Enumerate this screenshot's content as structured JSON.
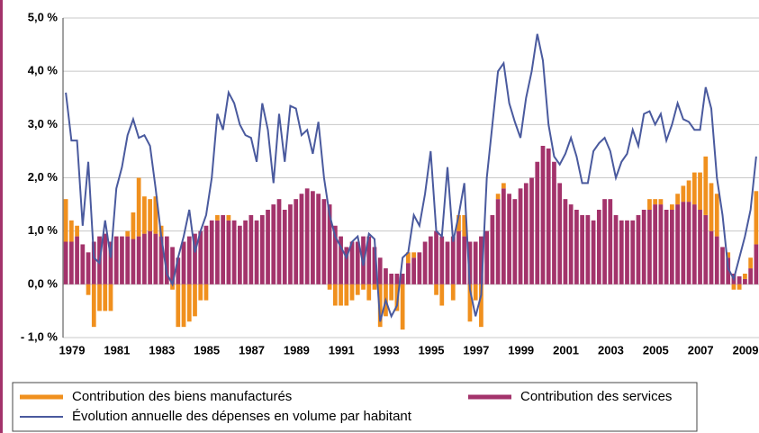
{
  "chart_data": {
    "type": "bar",
    "stacked": true,
    "categories": [
      "1979",
      null,
      null,
      null,
      null,
      null,
      null,
      null,
      "1981",
      null,
      null,
      null,
      null,
      null,
      null,
      null,
      "1983",
      null,
      null,
      null,
      null,
      null,
      null,
      null,
      "1985",
      null,
      null,
      null,
      null,
      null,
      null,
      null,
      "1987",
      null,
      null,
      null,
      null,
      null,
      null,
      null,
      "1989",
      null,
      null,
      null,
      null,
      null,
      null,
      null,
      "1991",
      null,
      null,
      null,
      null,
      null,
      null,
      null,
      "1993",
      null,
      null,
      null,
      null,
      null,
      null,
      null,
      "1995",
      null,
      null,
      null,
      null,
      null,
      null,
      null,
      "1997",
      null,
      null,
      null,
      null,
      null,
      null,
      null,
      "1999",
      null,
      null,
      null,
      null,
      null,
      null,
      null,
      "2001",
      null,
      null,
      null,
      null,
      null,
      null,
      null,
      "2003",
      null,
      null,
      null,
      null,
      null,
      null,
      null,
      "2005",
      null,
      null,
      null,
      null,
      null,
      null,
      null,
      "2007",
      null,
      null,
      null,
      null,
      null,
      null,
      null,
      "2009",
      null,
      null,
      null
    ],
    "series": [
      {
        "name": "Contribution des services",
        "color": "#a3336b",
        "values": [
          0.8,
          0.8,
          0.9,
          0.75,
          0.6,
          0.8,
          0.9,
          0.95,
          0.8,
          0.9,
          0.9,
          0.9,
          0.85,
          0.9,
          0.95,
          1.0,
          0.95,
          0.9,
          0.9,
          0.7,
          0.5,
          0.8,
          0.9,
          0.95,
          1.0,
          1.1,
          1.2,
          1.2,
          1.3,
          1.2,
          1.2,
          1.1,
          1.2,
          1.3,
          1.2,
          1.3,
          1.4,
          1.5,
          1.6,
          1.4,
          1.5,
          1.6,
          1.7,
          1.8,
          1.75,
          1.7,
          1.6,
          1.5,
          1.1,
          0.9,
          0.7,
          0.8,
          0.8,
          0.9,
          0.9,
          0.7,
          0.5,
          0.3,
          0.2,
          0.2,
          0.2,
          0.4,
          0.5,
          0.6,
          0.8,
          0.9,
          1.0,
          0.9,
          0.8,
          0.9,
          1.0,
          0.9,
          0.8,
          0.8,
          0.9,
          1.0,
          1.3,
          1.6,
          1.8,
          1.7,
          1.6,
          1.8,
          1.9,
          2.0,
          2.3,
          2.6,
          2.55,
          2.3,
          1.9,
          1.6,
          1.5,
          1.4,
          1.3,
          1.3,
          1.2,
          1.4,
          1.6,
          1.6,
          1.3,
          1.2,
          1.2,
          1.2,
          1.3,
          1.4,
          1.4,
          1.5,
          1.5,
          1.4,
          1.4,
          1.5,
          1.55,
          1.55,
          1.5,
          1.4,
          1.3,
          1.0,
          0.9,
          0.7,
          0.5,
          0.2,
          0.15,
          0.1,
          0.3,
          0.75
        ]
      },
      {
        "name": "Contribution des biens manufacturés",
        "color": "#f0901e",
        "values": [
          0.8,
          0.4,
          0.2,
          0.0,
          -0.2,
          -0.8,
          -0.5,
          -0.5,
          -0.5,
          0.0,
          0.0,
          0.1,
          0.5,
          1.1,
          0.7,
          0.6,
          0.7,
          0.2,
          0.0,
          -0.1,
          -0.8,
          -0.8,
          -0.7,
          -0.6,
          -0.3,
          -0.3,
          0.0,
          0.1,
          0.0,
          0.1,
          0.0,
          0.0,
          0.0,
          0.0,
          0.0,
          0.0,
          0.0,
          0.0,
          0.0,
          0.0,
          0.0,
          0.0,
          0.0,
          0.0,
          0.0,
          0.0,
          0.0,
          -0.1,
          -0.4,
          -0.4,
          -0.4,
          -0.3,
          -0.2,
          -0.1,
          -0.3,
          -0.1,
          -0.8,
          -0.6,
          -0.3,
          -0.5,
          -0.85,
          0.2,
          0.1,
          0.0,
          0.0,
          0.0,
          -0.2,
          -0.4,
          0.0,
          -0.3,
          0.3,
          0.4,
          -0.7,
          -0.3,
          -0.8,
          0.0,
          0.0,
          0.1,
          0.1,
          0.0,
          0.0,
          0.0,
          0.0,
          0.0,
          0.0,
          0.0,
          0.0,
          0.0,
          0.0,
          0.0,
          0.0,
          0.0,
          0.0,
          0.0,
          0.0,
          0.0,
          0.0,
          0.0,
          0.0,
          0.0,
          0.0,
          0.0,
          0.0,
          0.0,
          0.2,
          0.1,
          0.1,
          0.0,
          0.1,
          0.2,
          0.3,
          0.4,
          0.6,
          0.7,
          1.1,
          0.9,
          0.8,
          0.0,
          0.1,
          -0.1,
          -0.1,
          0.1,
          0.2,
          1.0
        ]
      },
      {
        "name": "Évolution annuelle des dépenses en volume par habitant",
        "color": "#4a5a9e",
        "type": "line",
        "values": [
          3.6,
          2.7,
          2.7,
          1.1,
          2.3,
          0.5,
          0.4,
          1.2,
          0.5,
          1.8,
          2.2,
          2.8,
          3.1,
          2.75,
          2.8,
          2.6,
          1.8,
          0.9,
          0.2,
          0.0,
          0.5,
          0.9,
          1.4,
          0.6,
          1.0,
          1.3,
          2.0,
          3.2,
          2.9,
          3.6,
          3.4,
          3.0,
          2.8,
          2.75,
          2.3,
          3.4,
          2.9,
          1.9,
          3.2,
          2.3,
          3.35,
          3.3,
          2.8,
          2.9,
          2.45,
          3.05,
          2.0,
          1.3,
          0.9,
          0.7,
          0.5,
          0.8,
          0.9,
          0.35,
          0.95,
          0.85,
          -0.7,
          -0.3,
          -0.6,
          -0.4,
          0.5,
          0.6,
          1.3,
          1.1,
          1.7,
          2.5,
          1.0,
          0.9,
          2.2,
          0.8,
          1.3,
          1.9,
          -0.1,
          -0.6,
          -0.2,
          2.0,
          3.0,
          4.0,
          4.15,
          3.4,
          3.05,
          2.75,
          3.5,
          4.0,
          4.7,
          4.2,
          3.0,
          2.4,
          2.25,
          2.45,
          2.75,
          2.4,
          1.9,
          1.9,
          2.5,
          2.65,
          2.75,
          2.5,
          2.0,
          2.3,
          2.45,
          2.9,
          2.6,
          3.2,
          3.25,
          3.0,
          3.2,
          2.7,
          3.0,
          3.4,
          3.1,
          3.05,
          2.9,
          2.9,
          3.7,
          3.3,
          2.0,
          1.3,
          0.3,
          0.1,
          0.5,
          0.9,
          1.4,
          2.4
        ]
      }
    ],
    "ylim": [
      -1,
      5
    ],
    "yticks": [
      {
        "value": -1,
        "label": "- 1,0 %"
      },
      {
        "value": 0,
        "label": "0,0 %"
      },
      {
        "value": 1,
        "label": "1,0 %"
      },
      {
        "value": 2,
        "label": "2,0 %"
      },
      {
        "value": 3,
        "label": "3,0 %"
      },
      {
        "value": 4,
        "label": "4,0 %"
      },
      {
        "value": 5,
        "label": "5,0 %"
      }
    ],
    "grid": true,
    "legend": "bottom"
  }
}
